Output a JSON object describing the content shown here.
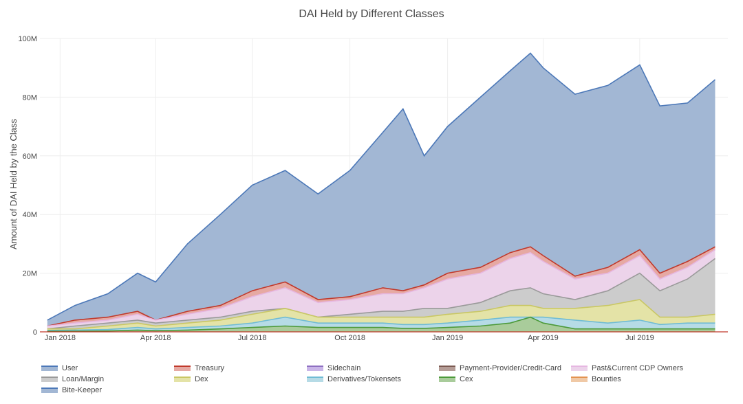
{
  "chart_data": {
    "type": "area",
    "title": "DAI Held by Different Classes",
    "xlabel": "",
    "ylabel": "Amount of DAI Held by the Class",
    "x_ticks": [
      "Jan 2018",
      "Apr 2018",
      "Jul 2018",
      "Oct 2018",
      "Jan 2019",
      "Apr 2019",
      "Jul 2019"
    ],
    "y_ticks": [
      "0",
      "20M",
      "40M",
      "60M",
      "80M",
      "100M"
    ],
    "ylim": [
      0,
      100
    ],
    "y_unit": "M",
    "x_dates": [
      "2017-12-20",
      "2018-01-15",
      "2018-02-15",
      "2018-03-15",
      "2018-04-01",
      "2018-05-01",
      "2018-06-01",
      "2018-07-01",
      "2018-08-01",
      "2018-09-01",
      "2018-10-01",
      "2018-11-01",
      "2018-11-20",
      "2018-12-10",
      "2019-01-01",
      "2019-02-01",
      "2019-03-01",
      "2019-03-20",
      "2019-04-01",
      "2019-05-01",
      "2019-06-01",
      "2019-07-01",
      "2019-07-20",
      "2019-08-15",
      "2019-09-10"
    ],
    "stacked_totals": {
      "User": [
        4,
        9,
        13,
        20,
        17,
        30,
        40,
        50,
        55,
        47,
        55,
        68,
        76,
        60,
        70,
        80,
        89,
        95,
        90,
        81,
        84,
        91,
        77,
        78,
        86
      ],
      "Treasury": [
        2,
        4,
        5,
        7,
        4,
        7,
        9,
        14,
        17,
        11,
        12,
        15,
        14,
        16,
        20,
        22,
        27,
        29,
        26,
        19,
        22,
        28,
        20,
        24,
        29
      ],
      "Past&Current CDP Owners": [
        2,
        3,
        4,
        6,
        4,
        6,
        8,
        12,
        15,
        10,
        11,
        13,
        13,
        15,
        18,
        20,
        25,
        27,
        24,
        18,
        20,
        26,
        18,
        22,
        28
      ],
      "Loan/Margin": [
        1,
        2,
        3,
        4,
        3,
        4,
        5,
        7,
        8,
        5,
        6,
        7,
        7,
        8,
        8,
        10,
        14,
        15,
        13,
        11,
        14,
        20,
        14,
        18,
        25
      ],
      "Dex": [
        1,
        1,
        2,
        3,
        2,
        3,
        4,
        6,
        8,
        5,
        5,
        5,
        5,
        5,
        6,
        7,
        9,
        9,
        8,
        8,
        9,
        11,
        5,
        5,
        6
      ],
      "Derivatives/Tokensets": [
        0.5,
        0.6,
        0.8,
        1.5,
        1,
        1.5,
        2,
        3,
        5,
        3,
        3,
        3,
        2.5,
        2.5,
        3,
        4,
        5,
        5,
        5,
        4,
        3,
        4,
        2.5,
        3,
        3
      ],
      "Cex": [
        0.2,
        0.2,
        0.3,
        0.6,
        0.4,
        0.6,
        1,
        1.5,
        2,
        1.5,
        1.5,
        1.5,
        1.2,
        1.2,
        1.5,
        2,
        3,
        5,
        3,
        1,
        1,
        1,
        1,
        1,
        1
      ]
    },
    "series": [
      {
        "name": "User",
        "color": "#4c78b8",
        "fill": "#a2b7d4"
      },
      {
        "name": "Treasury",
        "color": "#c0392b",
        "fill": "#e6a9a3"
      },
      {
        "name": "Sidechain",
        "color": "#8e6fc1",
        "fill": "#c9b5e8"
      },
      {
        "name": "Payment-Provider/Credit-Card",
        "color": "#7b5a52",
        "fill": "#b59d97"
      },
      {
        "name": "Past&Current CDP Owners",
        "color": "#e6b7e1",
        "fill": "#ecd3ea"
      },
      {
        "name": "Loan/Margin",
        "color": "#9a9a9a",
        "fill": "#cccccc"
      },
      {
        "name": "Dex",
        "color": "#c9c764",
        "fill": "#e4e3a7"
      },
      {
        "name": "Derivatives/Tokensets",
        "color": "#70bcd4",
        "fill": "#b6dbe6"
      },
      {
        "name": "Cex",
        "color": "#4c9a3a",
        "fill": "#a9cc9b"
      },
      {
        "name": "Bounties",
        "color": "#e39350",
        "fill": "#f0c9a6"
      },
      {
        "name": "Bite-Keeper",
        "color": "#4c78b8",
        "fill": "#a2b7d4"
      }
    ],
    "legend_position": "bottom",
    "grid": true
  }
}
